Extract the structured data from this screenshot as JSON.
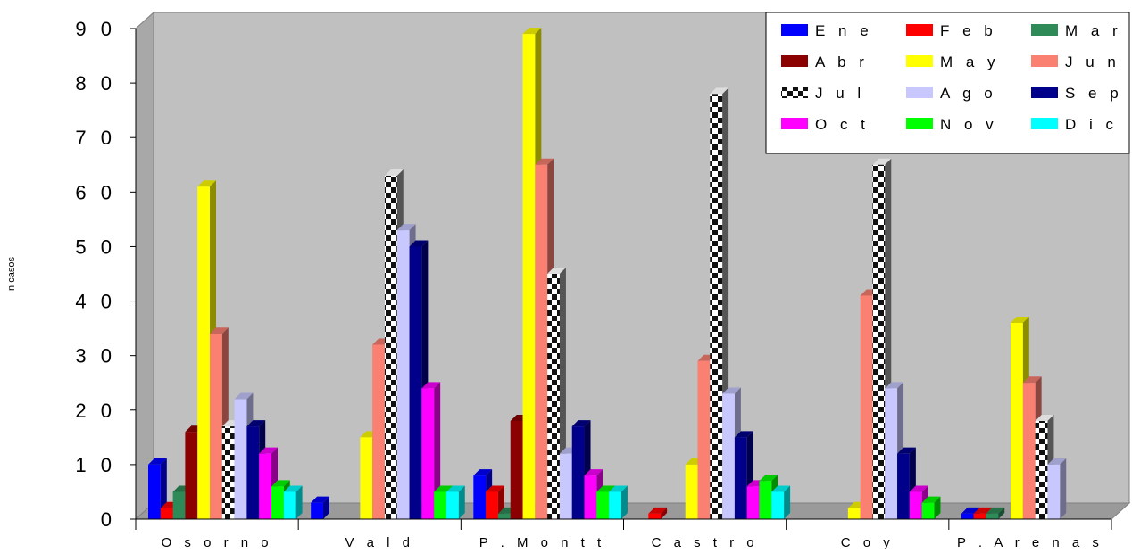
{
  "chart_data": {
    "type": "bar",
    "title": "",
    "xlabel": "",
    "ylabel": "n casos",
    "ylim": [
      0,
      90
    ],
    "yticks": [
      "0",
      "1 0",
      "2 0",
      "3 0",
      "4 0",
      "5 0",
      "6 0",
      "7 0",
      "8 0",
      "9 0"
    ],
    "grid": false,
    "legend_position": "top-right",
    "categories": [
      "O s o r n o",
      "V a l d",
      "P . M o n t t",
      "C a s t r o",
      "C o y",
      "P . A r e n a s"
    ],
    "series": [
      {
        "name": "E n e",
        "color": "#0000ff",
        "values": [
          10,
          3,
          8,
          0,
          0,
          1
        ]
      },
      {
        "name": "F e b",
        "color": "#ff0000",
        "values": [
          2,
          0,
          5,
          1,
          0,
          1
        ]
      },
      {
        "name": "M a r",
        "color": "#2e8b57",
        "values": [
          5,
          0,
          1,
          0,
          0,
          1
        ]
      },
      {
        "name": "A b r",
        "color": "#8b0000",
        "values": [
          16,
          0,
          18,
          0,
          0,
          0
        ]
      },
      {
        "name": "M a y",
        "color": "#ffff00",
        "values": [
          61,
          15,
          89,
          10,
          2,
          36
        ]
      },
      {
        "name": "J u n",
        "color": "#fa8072",
        "values": [
          34,
          32,
          65,
          29,
          41,
          25
        ]
      },
      {
        "name": "J u l",
        "color": "#ffffff",
        "pattern": "checker",
        "values": [
          17,
          63,
          45,
          78,
          65,
          18
        ]
      },
      {
        "name": "A g o",
        "color": "#c8c8ff",
        "values": [
          22,
          53,
          12,
          23,
          24,
          10
        ]
      },
      {
        "name": "S e p",
        "color": "#00008b",
        "values": [
          17,
          50,
          17,
          15,
          12,
          0
        ]
      },
      {
        "name": "O c t",
        "color": "#ff00ff",
        "values": [
          12,
          24,
          8,
          6,
          5,
          0
        ]
      },
      {
        "name": "N o v",
        "color": "#00ff00",
        "values": [
          6,
          5,
          5,
          7,
          3,
          0
        ]
      },
      {
        "name": "D i c",
        "color": "#00ffff",
        "values": [
          5,
          5,
          5,
          5,
          0,
          0
        ]
      }
    ]
  }
}
